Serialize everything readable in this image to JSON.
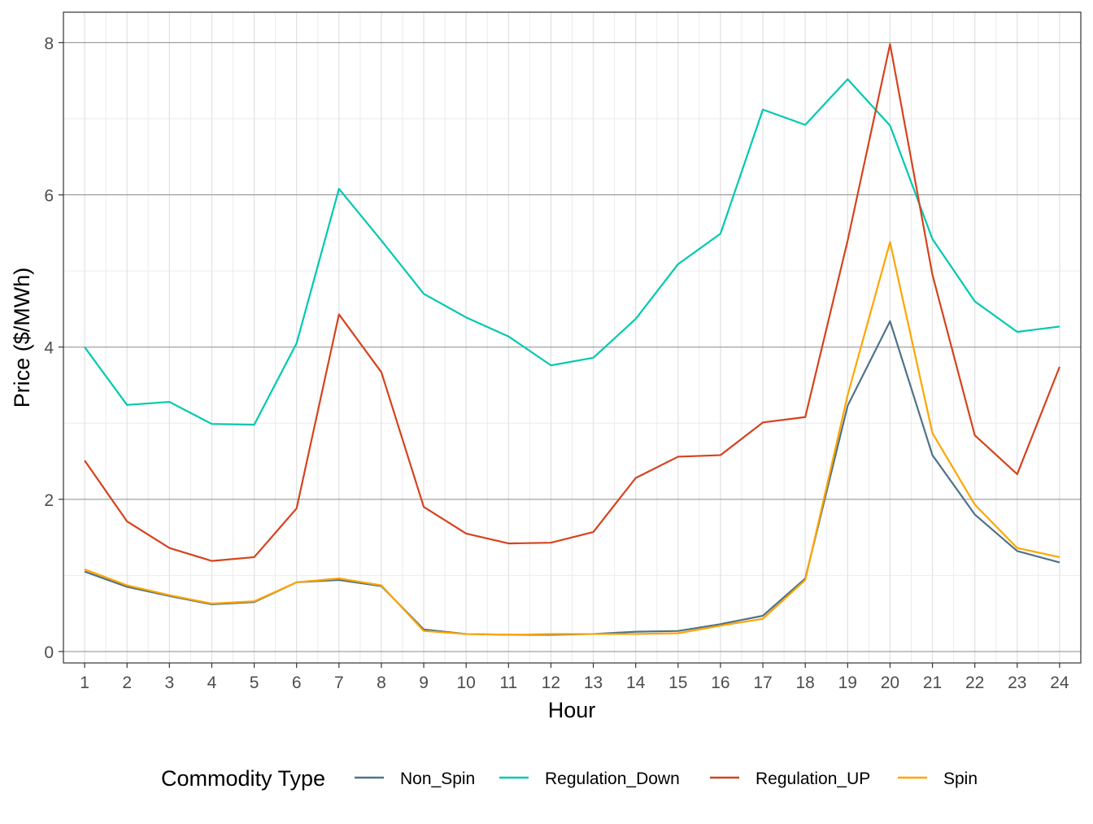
{
  "chart_data": {
    "type": "line",
    "title": "",
    "xlabel": "Hour",
    "ylabel": "Price ($/MWh)",
    "x": [
      1,
      2,
      3,
      4,
      5,
      6,
      7,
      8,
      9,
      10,
      11,
      12,
      13,
      14,
      15,
      16,
      17,
      18,
      19,
      20,
      21,
      22,
      23,
      24
    ],
    "x_tick_labels": [
      "1",
      "2",
      "3",
      "4",
      "5",
      "6",
      "7",
      "8",
      "9",
      "10",
      "11",
      "12",
      "13",
      "14",
      "15",
      "16",
      "17",
      "18",
      "19",
      "20",
      "21",
      "22",
      "23",
      "24"
    ],
    "y_ticks": [
      0,
      2,
      4,
      6,
      8
    ],
    "ylim": [
      -0.15,
      8.4
    ],
    "xlim": [
      0.5,
      24.5
    ],
    "grid": true,
    "legend": {
      "title": "Commodity Type",
      "position": "bottom"
    },
    "series": [
      {
        "name": "Non_Spin",
        "color": "#4f7389",
        "values": [
          1.05,
          0.85,
          0.73,
          0.62,
          0.65,
          0.91,
          0.94,
          0.86,
          0.29,
          0.23,
          0.22,
          0.22,
          0.23,
          0.26,
          0.27,
          0.36,
          0.47,
          0.96,
          3.23,
          4.34,
          2.58,
          1.8,
          1.32,
          1.17
        ]
      },
      {
        "name": "Regulation_Down",
        "color": "#00c9b0",
        "values": [
          4.0,
          3.24,
          3.28,
          2.99,
          2.98,
          4.05,
          6.08,
          5.4,
          4.7,
          4.39,
          4.14,
          3.76,
          3.86,
          4.37,
          5.09,
          5.49,
          7.12,
          6.92,
          7.52,
          6.91,
          5.42,
          4.6,
          4.2,
          4.27
        ]
      },
      {
        "name": "Regulation_UP",
        "color": "#d5431e",
        "values": [
          2.51,
          1.71,
          1.36,
          1.19,
          1.24,
          1.88,
          4.43,
          3.67,
          1.9,
          1.55,
          1.42,
          1.43,
          1.57,
          2.28,
          2.56,
          2.58,
          3.01,
          3.08,
          5.4,
          7.98,
          4.95,
          2.84,
          2.33,
          3.74
        ]
      },
      {
        "name": "Spin",
        "color": "#ffa500",
        "values": [
          1.08,
          0.87,
          0.74,
          0.63,
          0.66,
          0.91,
          0.96,
          0.87,
          0.27,
          0.23,
          0.22,
          0.23,
          0.23,
          0.23,
          0.24,
          0.34,
          0.43,
          0.94,
          3.37,
          5.38,
          2.87,
          1.93,
          1.36,
          1.24
        ]
      }
    ]
  }
}
